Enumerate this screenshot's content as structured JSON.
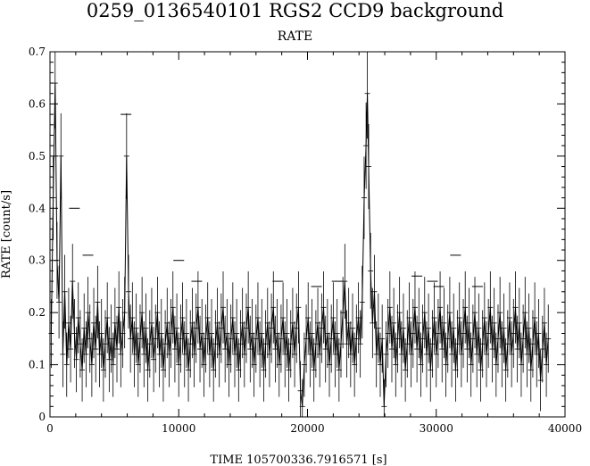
{
  "chart_data": {
    "type": "line",
    "title": "0259_0136540101 RGS2 CCD9 background",
    "subtitle": "RATE",
    "xlabel": "TIME    105700336.7916571 [s]",
    "ylabel": "RATE [count/s]",
    "xlim": [
      0,
      40000
    ],
    "ylim": [
      0,
      0.7
    ],
    "xticks": [
      "0",
      "10000",
      "20000",
      "30000",
      "40000"
    ],
    "yticks": [
      "0",
      "0.1",
      "0.2",
      "0.3",
      "0.4",
      "0.5",
      "0.6",
      "0.7"
    ],
    "grid": false,
    "series": [
      {
        "values": [
          [
            100,
            0.16
          ],
          [
            250,
            0.42
          ],
          [
            400,
            0.64
          ],
          [
            550,
            0.3
          ],
          [
            700,
            0.22
          ],
          [
            850,
            0.5
          ],
          [
            1000,
            0.12
          ],
          [
            1150,
            0.24
          ],
          [
            1300,
            0.1
          ],
          [
            1450,
            0.18
          ],
          [
            1600,
            0.13
          ],
          [
            1750,
            0.26
          ],
          [
            1900,
            0.16
          ],
          [
            2050,
            0.11
          ],
          [
            2200,
            0.19
          ],
          [
            2350,
            0.14
          ],
          [
            2500,
            0.09
          ],
          [
            2650,
            0.17
          ],
          [
            2800,
            0.12
          ],
          [
            2950,
            0.2
          ],
          [
            3100,
            0.15
          ],
          [
            3250,
            0.1
          ],
          [
            3400,
            0.18
          ],
          [
            3550,
            0.13
          ],
          [
            3700,
            0.22
          ],
          [
            3850,
            0.12
          ],
          [
            4000,
            0.16
          ],
          [
            4150,
            0.09
          ],
          [
            4300,
            0.14
          ],
          [
            4450,
            0.19
          ],
          [
            4600,
            0.11
          ],
          [
            4750,
            0.15
          ],
          [
            4900,
            0.1
          ],
          [
            5050,
            0.18
          ],
          [
            5200,
            0.13
          ],
          [
            5350,
            0.21
          ],
          [
            5500,
            0.12
          ],
          [
            5650,
            0.16
          ],
          [
            5800,
            0.2
          ],
          [
            5950,
            0.5
          ],
          [
            6100,
            0.24
          ],
          [
            6250,
            0.15
          ],
          [
            6400,
            0.19
          ],
          [
            6550,
            0.12
          ],
          [
            6700,
            0.17
          ],
          [
            6850,
            0.1
          ],
          [
            7000,
            0.15
          ],
          [
            7150,
            0.2
          ],
          [
            7300,
            0.12
          ],
          [
            7450,
            0.17
          ],
          [
            7600,
            0.09
          ],
          [
            7750,
            0.14
          ],
          [
            7900,
            0.18
          ],
          [
            8050,
            0.11
          ],
          [
            8200,
            0.15
          ],
          [
            8350,
            0.2
          ],
          [
            8500,
            0.12
          ],
          [
            8650,
            0.16
          ],
          [
            8800,
            0.09
          ],
          [
            8950,
            0.14
          ],
          [
            9100,
            0.18
          ],
          [
            9250,
            0.12
          ],
          [
            9400,
            0.16
          ],
          [
            9550,
            0.21
          ],
          [
            9700,
            0.13
          ],
          [
            9850,
            0.17
          ],
          [
            10000,
            0.1
          ],
          [
            10150,
            0.15
          ],
          [
            10300,
            0.19
          ],
          [
            10450,
            0.12
          ],
          [
            10600,
            0.16
          ],
          [
            10750,
            0.09
          ],
          [
            10900,
            0.14
          ],
          [
            11050,
            0.18
          ],
          [
            11200,
            0.12
          ],
          [
            11350,
            0.17
          ],
          [
            11500,
            0.21
          ],
          [
            11650,
            0.13
          ],
          [
            11800,
            0.16
          ],
          [
            11950,
            0.1
          ],
          [
            12100,
            0.15
          ],
          [
            12250,
            0.19
          ],
          [
            12400,
            0.12
          ],
          [
            12550,
            0.16
          ],
          [
            12700,
            0.09
          ],
          [
            12850,
            0.14
          ],
          [
            13000,
            0.18
          ],
          [
            13150,
            0.12
          ],
          [
            13300,
            0.17
          ],
          [
            13450,
            0.21
          ],
          [
            13600,
            0.13
          ],
          [
            13750,
            0.16
          ],
          [
            13900,
            0.1
          ],
          [
            14050,
            0.15
          ],
          [
            14200,
            0.19
          ],
          [
            14350,
            0.12
          ],
          [
            14500,
            0.16
          ],
          [
            14650,
            0.09
          ],
          [
            14800,
            0.14
          ],
          [
            14950,
            0.18
          ],
          [
            15100,
            0.12
          ],
          [
            15250,
            0.17
          ],
          [
            15400,
            0.21
          ],
          [
            15550,
            0.13
          ],
          [
            15700,
            0.16
          ],
          [
            15850,
            0.1
          ],
          [
            16000,
            0.15
          ],
          [
            16150,
            0.19
          ],
          [
            16300,
            0.12
          ],
          [
            16450,
            0.16
          ],
          [
            16600,
            0.09
          ],
          [
            16750,
            0.14
          ],
          [
            16900,
            0.18
          ],
          [
            17050,
            0.12
          ],
          [
            17200,
            0.17
          ],
          [
            17350,
            0.21
          ],
          [
            17500,
            0.13
          ],
          [
            17650,
            0.16
          ],
          [
            17800,
            0.1
          ],
          [
            17950,
            0.15
          ],
          [
            18100,
            0.19
          ],
          [
            18250,
            0.12
          ],
          [
            18400,
            0.16
          ],
          [
            18550,
            0.09
          ],
          [
            18700,
            0.14
          ],
          [
            18850,
            0.18
          ],
          [
            19000,
            0.12
          ],
          [
            19150,
            0.17
          ],
          [
            19300,
            0.21
          ],
          [
            19450,
            0.05
          ],
          [
            19600,
            0.02
          ],
          [
            19750,
            0.1
          ],
          [
            19900,
            0.15
          ],
          [
            20050,
            0.19
          ],
          [
            20200,
            0.12
          ],
          [
            20350,
            0.16
          ],
          [
            20500,
            0.09
          ],
          [
            20650,
            0.14
          ],
          [
            20800,
            0.18
          ],
          [
            20950,
            0.12
          ],
          [
            21100,
            0.17
          ],
          [
            21250,
            0.21
          ],
          [
            21400,
            0.13
          ],
          [
            21550,
            0.16
          ],
          [
            21700,
            0.1
          ],
          [
            21850,
            0.15
          ],
          [
            22000,
            0.19
          ],
          [
            22150,
            0.12
          ],
          [
            22300,
            0.16
          ],
          [
            22450,
            0.09
          ],
          [
            22600,
            0.14
          ],
          [
            22750,
            0.2
          ],
          [
            22900,
            0.26
          ],
          [
            23050,
            0.14
          ],
          [
            23200,
            0.18
          ],
          [
            23350,
            0.12
          ],
          [
            23500,
            0.17
          ],
          [
            23650,
            0.1
          ],
          [
            23800,
            0.15
          ],
          [
            23950,
            0.19
          ],
          [
            24100,
            0.14
          ],
          [
            24250,
            0.22
          ],
          [
            24400,
            0.42
          ],
          [
            24550,
            0.52
          ],
          [
            24650,
            0.62
          ],
          [
            24750,
            0.48
          ],
          [
            24900,
            0.28
          ],
          [
            25050,
            0.18
          ],
          [
            25200,
            0.24
          ],
          [
            25350,
            0.12
          ],
          [
            25500,
            0.17
          ],
          [
            25650,
            0.1
          ],
          [
            25800,
            0.15
          ],
          [
            25950,
            0.02
          ],
          [
            26100,
            0.12
          ],
          [
            26250,
            0.16
          ],
          [
            26400,
            0.21
          ],
          [
            26550,
            0.13
          ],
          [
            26700,
            0.18
          ],
          [
            26850,
            0.1
          ],
          [
            27000,
            0.15
          ],
          [
            27150,
            0.2
          ],
          [
            27300,
            0.12
          ],
          [
            27450,
            0.17
          ],
          [
            27600,
            0.09
          ],
          [
            27750,
            0.14
          ],
          [
            27900,
            0.19
          ],
          [
            28050,
            0.12
          ],
          [
            28200,
            0.16
          ],
          [
            28350,
            0.21
          ],
          [
            28500,
            0.13
          ],
          [
            28650,
            0.18
          ],
          [
            28800,
            0.1
          ],
          [
            28950,
            0.15
          ],
          [
            29100,
            0.2
          ],
          [
            29250,
            0.12
          ],
          [
            29400,
            0.17
          ],
          [
            29550,
            0.09
          ],
          [
            29700,
            0.14
          ],
          [
            29850,
            0.19
          ],
          [
            30000,
            0.12
          ],
          [
            30150,
            0.16
          ],
          [
            30300,
            0.21
          ],
          [
            30450,
            0.13
          ],
          [
            30600,
            0.18
          ],
          [
            30750,
            0.1
          ],
          [
            30900,
            0.15
          ],
          [
            31050,
            0.2
          ],
          [
            31200,
            0.12
          ],
          [
            31350,
            0.17
          ],
          [
            31500,
            0.09
          ],
          [
            31650,
            0.14
          ],
          [
            31800,
            0.19
          ],
          [
            31950,
            0.12
          ],
          [
            32100,
            0.16
          ],
          [
            32250,
            0.21
          ],
          [
            32400,
            0.13
          ],
          [
            32550,
            0.18
          ],
          [
            32700,
            0.1
          ],
          [
            32850,
            0.15
          ],
          [
            33000,
            0.2
          ],
          [
            33150,
            0.12
          ],
          [
            33300,
            0.17
          ],
          [
            33450,
            0.09
          ],
          [
            33600,
            0.14
          ],
          [
            33750,
            0.19
          ],
          [
            33900,
            0.12
          ],
          [
            34050,
            0.16
          ],
          [
            34200,
            0.21
          ],
          [
            34350,
            0.13
          ],
          [
            34500,
            0.18
          ],
          [
            34650,
            0.1
          ],
          [
            34800,
            0.15
          ],
          [
            34950,
            0.2
          ],
          [
            35100,
            0.12
          ],
          [
            35250,
            0.17
          ],
          [
            35400,
            0.09
          ],
          [
            35550,
            0.14
          ],
          [
            35700,
            0.19
          ],
          [
            35850,
            0.12
          ],
          [
            36000,
            0.16
          ],
          [
            36150,
            0.21
          ],
          [
            36300,
            0.13
          ],
          [
            36450,
            0.18
          ],
          [
            36600,
            0.1
          ],
          [
            36750,
            0.15
          ],
          [
            36900,
            0.2
          ],
          [
            37050,
            0.12
          ],
          [
            37200,
            0.17
          ],
          [
            37350,
            0.09
          ],
          [
            37500,
            0.14
          ],
          [
            37650,
            0.19
          ],
          [
            37800,
            0.12
          ],
          [
            37950,
            0.16
          ],
          [
            38100,
            0.07
          ],
          [
            38250,
            0.13
          ],
          [
            38400,
            0.18
          ],
          [
            38550,
            0.1
          ],
          [
            38700,
            0.15
          ]
        ]
      }
    ],
    "outlier_bars": [
      [
        1900,
        0.4
      ],
      [
        2950,
        0.31
      ],
      [
        5900,
        0.58
      ],
      [
        10000,
        0.3
      ],
      [
        11400,
        0.26
      ],
      [
        17700,
        0.26
      ],
      [
        20700,
        0.25
      ],
      [
        22300,
        0.26
      ],
      [
        28500,
        0.27
      ],
      [
        29700,
        0.26
      ],
      [
        31500,
        0.31
      ],
      [
        33200,
        0.25
      ],
      [
        30200,
        0.25
      ]
    ]
  }
}
